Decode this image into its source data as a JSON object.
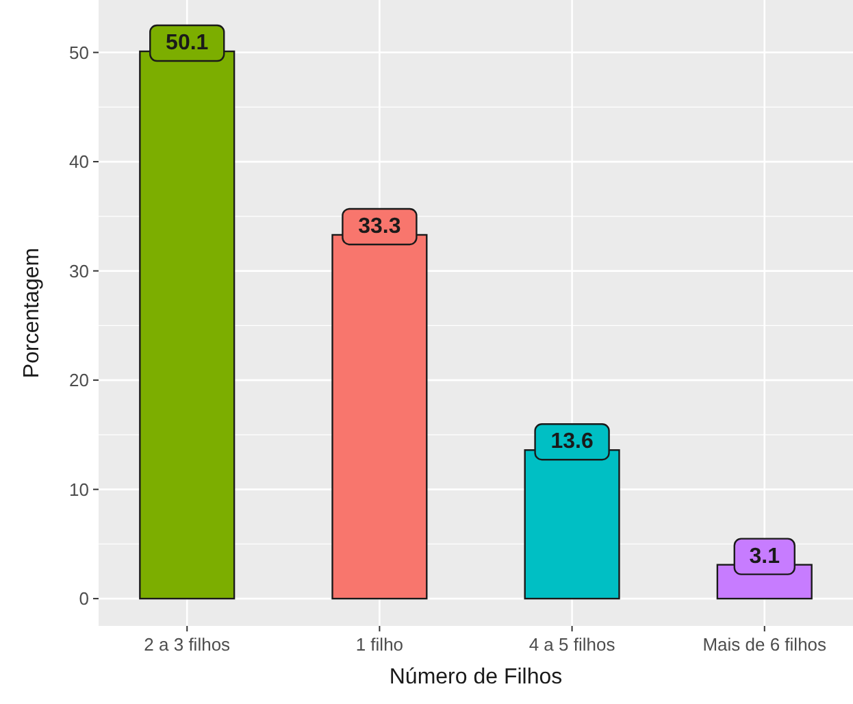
{
  "chart_data": {
    "type": "bar",
    "xlabel": "Número de Filhos",
    "ylabel": "Porcentagem",
    "categories": [
      "2 a 3 filhos",
      "1 filho",
      "4 a 5 filhos",
      "Mais de 6 filhos"
    ],
    "values": [
      50.1,
      33.3,
      13.6,
      3.1
    ],
    "colors": [
      "#7cae00",
      "#f8766d",
      "#00bfc4",
      "#c77cff"
    ],
    "ylim": [
      -2.5,
      54.8
    ],
    "yticks": [
      0,
      10,
      20,
      30,
      40,
      50
    ],
    "grid": true,
    "data_labels": true
  }
}
